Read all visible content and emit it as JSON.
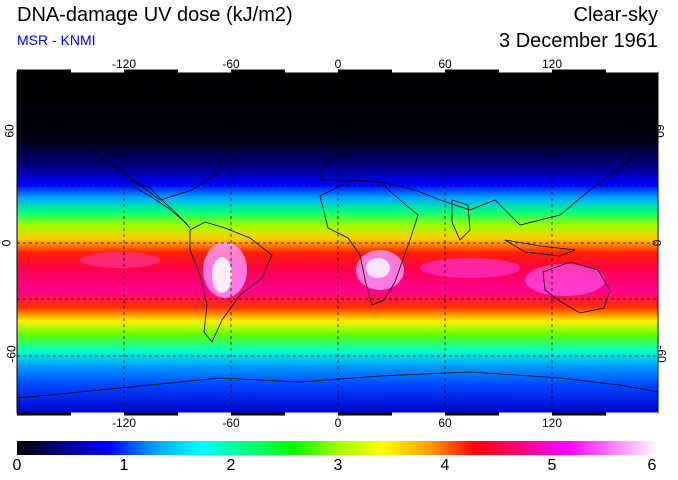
{
  "header": {
    "title": "DNA-damage UV dose (kJ/m2)",
    "source": "MSR - KNMI",
    "condition": "Clear-sky",
    "date": "3 December 1961"
  },
  "colors": {
    "source_text": "#0000ee",
    "scale": [
      "#000000",
      "#00008b",
      "#0000ff",
      "#00a0ff",
      "#00ffff",
      "#00ff80",
      "#00ff00",
      "#a0ff00",
      "#ffff00",
      "#ffa000",
      "#ff0000",
      "#ff0080",
      "#ff00ff",
      "#ff80ff",
      "#ffffff"
    ]
  },
  "axes": {
    "lon_ticks": [
      "-120",
      "-60",
      "0",
      "60",
      "120"
    ],
    "lat_ticks": [
      "60",
      "0",
      "-60"
    ]
  },
  "colorbar": {
    "min": 0,
    "max": 6,
    "labels": [
      "0",
      "1",
      "2",
      "3",
      "4",
      "5",
      "6"
    ]
  }
}
